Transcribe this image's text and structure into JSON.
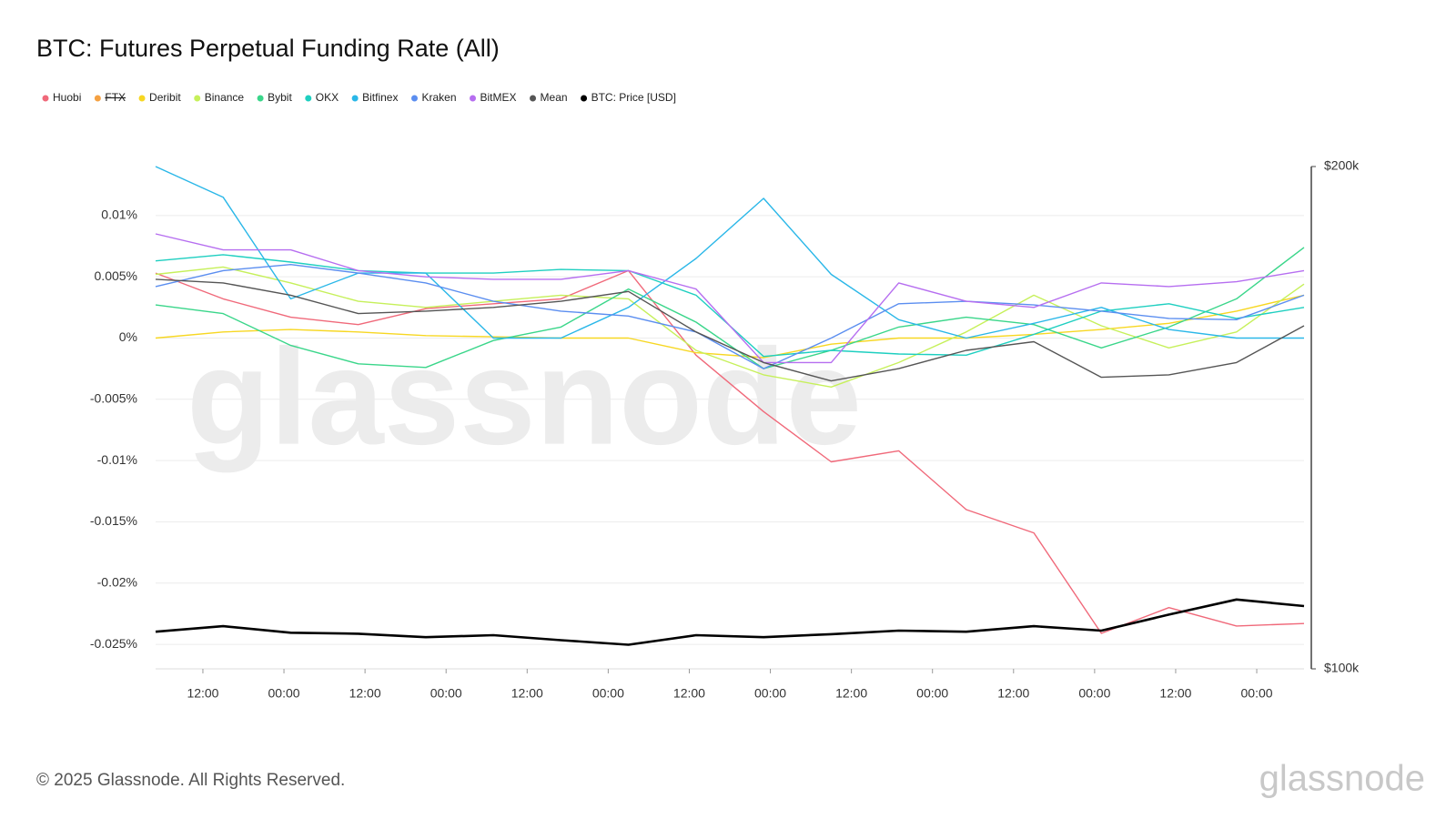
{
  "chart_data": {
    "type": "line",
    "title": "BTC: Futures Perpetual Funding Rate (All)",
    "watermark": "glassnode",
    "footer": "© 2025 Glassnode. All Rights Reserved.",
    "logo": "glassnode",
    "x": [
      0,
      10,
      20,
      30,
      40,
      50,
      60,
      70,
      80,
      90,
      100,
      110,
      120,
      130,
      140,
      150,
      160,
      170
    ],
    "xlim": [
      0,
      170
    ],
    "xticks": [
      {
        "value": 7,
        "label": "12:00"
      },
      {
        "value": 19,
        "label": "00:00"
      },
      {
        "value": 31,
        "label": "12:00"
      },
      {
        "value": 43,
        "label": "00:00"
      },
      {
        "value": 55,
        "label": "12:00"
      },
      {
        "value": 67,
        "label": "00:00"
      },
      {
        "value": 79,
        "label": "12:00"
      },
      {
        "value": 91,
        "label": "00:00"
      },
      {
        "value": 103,
        "label": "12:00"
      },
      {
        "value": 115,
        "label": "00:00"
      },
      {
        "value": 127,
        "label": "12:00"
      },
      {
        "value": 139,
        "label": "00:00"
      },
      {
        "value": 151,
        "label": "12:00"
      },
      {
        "value": 163,
        "label": "00:00"
      }
    ],
    "ylim": [
      -0.027,
      0.014
    ],
    "yticks": [
      {
        "value": 0.01,
        "label": "0.01%"
      },
      {
        "value": 0.005,
        "label": "0.005%"
      },
      {
        "value": 0,
        "label": "0%"
      },
      {
        "value": -0.005,
        "label": "-0.005%"
      },
      {
        "value": -0.01,
        "label": "-0.01%"
      },
      {
        "value": -0.015,
        "label": "-0.015%"
      },
      {
        "value": -0.02,
        "label": "-0.02%"
      },
      {
        "value": -0.025,
        "label": "-0.025%"
      }
    ],
    "y2lim": [
      100000,
      200000
    ],
    "y2ticks": [
      {
        "value": 200000,
        "label": "$200k"
      },
      {
        "value": 100000,
        "label": "$100k"
      }
    ],
    "grid": true,
    "series": [
      {
        "name": "Huobi",
        "color": "#f0697a",
        "values": [
          0.0053,
          0.0032,
          0.0017,
          0.0011,
          0.0024,
          0.0028,
          0.0032,
          0.0055,
          -0.0014,
          -0.006,
          -0.0101,
          -0.0092,
          -0.014,
          -0.0159,
          -0.0241,
          -0.022,
          -0.0235,
          -0.0233
        ]
      },
      {
        "name": "FTX",
        "color": "#f5a142",
        "hidden": true,
        "values": [
          null,
          null,
          null,
          null,
          null,
          null,
          null,
          null,
          null,
          null,
          null,
          null,
          null,
          null,
          null,
          null,
          null,
          null
        ]
      },
      {
        "name": "Deribit",
        "color": "#f7d722",
        "values": [
          0,
          0.0005,
          0.0007,
          0.0005,
          0.0002,
          0.0001,
          0,
          0,
          -0.0012,
          -0.0016,
          -0.0005,
          0,
          0,
          0.0003,
          0.0007,
          0.0012,
          0.0022,
          0.0035
        ]
      },
      {
        "name": "Binance",
        "color": "#c6f05a",
        "values": [
          0.0052,
          0.0058,
          0.0045,
          0.003,
          0.0025,
          0.003,
          0.0035,
          0.0032,
          -0.001,
          -0.003,
          -0.004,
          -0.002,
          0.0005,
          0.0035,
          0.001,
          -0.0008,
          0.0005,
          0.0044
        ]
      },
      {
        "name": "Bybit",
        "color": "#3ad68a",
        "values": [
          0.0027,
          0.002,
          -0.0006,
          -0.0021,
          -0.0024,
          -0.0002,
          0.0009,
          0.004,
          0.0013,
          -0.0025,
          -0.001,
          0.0009,
          0.0017,
          0.0011,
          -0.0008,
          0.0009,
          0.0032,
          0.0074
        ]
      },
      {
        "name": "OKX",
        "color": "#1ecfc0",
        "values": [
          0.0063,
          0.0068,
          0.0062,
          0.0055,
          0.0053,
          0.0053,
          0.0056,
          0.0055,
          0.0035,
          -0.0015,
          -0.001,
          -0.0013,
          -0.0014,
          0.0003,
          0.0022,
          0.0028,
          0.0016,
          0.0025
        ]
      },
      {
        "name": "Bitfinex",
        "color": "#2ab7e8",
        "values": [
          0.014,
          0.0115,
          0.0032,
          0.0053,
          0.0053,
          0,
          0,
          0.0025,
          0.0065,
          0.0114,
          0.0052,
          0.0015,
          0,
          0.0012,
          0.0025,
          0.0007,
          0,
          0
        ]
      },
      {
        "name": "Kraken",
        "color": "#5b8ef0",
        "values": [
          0.0042,
          0.0055,
          0.006,
          0.0053,
          0.0045,
          0.003,
          0.0022,
          0.0018,
          0.0005,
          -0.0025,
          0,
          0.0028,
          0.003,
          0.0027,
          0.0022,
          0.0016,
          0.0015,
          0.0035
        ]
      },
      {
        "name": "BitMEX",
        "color": "#b66ef0",
        "values": [
          0.0085,
          0.0072,
          0.0072,
          0.0055,
          0.005,
          0.0048,
          0.0048,
          0.0055,
          0.004,
          -0.002,
          -0.002,
          0.0045,
          0.003,
          0.0025,
          0.0045,
          0.0042,
          0.0046,
          0.0055
        ]
      },
      {
        "name": "Mean",
        "color": "#555555",
        "values": [
          0.0048,
          0.0045,
          0.0035,
          0.002,
          0.0022,
          0.0025,
          0.003,
          0.0038,
          0.0005,
          -0.002,
          -0.0035,
          -0.0025,
          -0.001,
          -0.0003,
          -0.0032,
          -0.003,
          -0.002,
          0.001
        ]
      },
      {
        "name": "BTC: Price [USD]",
        "color": "#000000",
        "axis": "y2",
        "values": [
          107400,
          108500,
          107200,
          107000,
          106300,
          106700,
          105700,
          104800,
          106700,
          106300,
          106900,
          107600,
          107400,
          108500,
          107600,
          110800,
          113800,
          112500
        ]
      }
    ]
  }
}
